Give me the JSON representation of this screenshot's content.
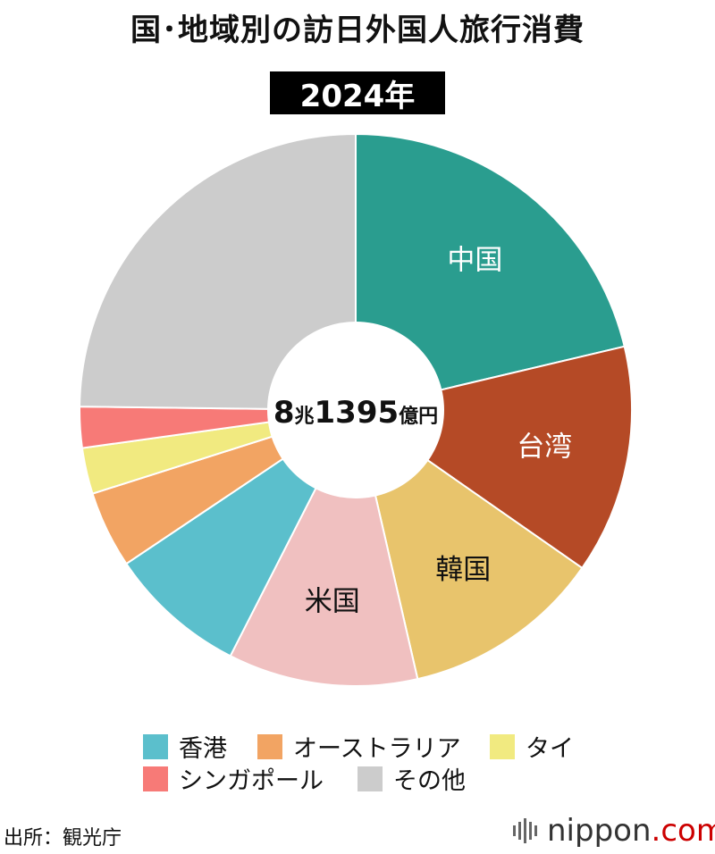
{
  "title": "国･地域別の訪日外国人旅行消費",
  "year_label": "2024年",
  "center_total": {
    "number_1": "8",
    "unit_1": "兆",
    "number_2": "1395",
    "unit_2": "億円"
  },
  "source": "出所：観光庁",
  "brand": {
    "name": "nippon",
    "suffix": ".com"
  },
  "chart_data": {
    "type": "pie",
    "values_unit": "percent (estimated from slice angles)",
    "slices": [
      {
        "label": "中国",
        "value": 21.3,
        "color": "#2a9d8f",
        "labeled": true,
        "label_color": "#ffffff"
      },
      {
        "label": "台湾",
        "value": 13.4,
        "color": "#b54a26",
        "labeled": true,
        "label_color": "#ffffff"
      },
      {
        "label": "韓国",
        "value": 11.7,
        "color": "#e8c46c",
        "labeled": true,
        "label_color": "#111111"
      },
      {
        "label": "米国",
        "value": 11.1,
        "color": "#f0c0c0",
        "labeled": true,
        "label_color": "#111111"
      },
      {
        "label": "香港",
        "value": 8.1,
        "color": "#5bbfcc",
        "labeled": false
      },
      {
        "label": "オーストラリア",
        "value": 4.5,
        "color": "#f2a463",
        "labeled": false
      },
      {
        "label": "タイ",
        "value": 2.7,
        "color": "#f1ea80",
        "labeled": false
      },
      {
        "label": "シンガポール",
        "value": 2.4,
        "color": "#f77a77",
        "labeled": false
      },
      {
        "label": "その他",
        "value": 24.8,
        "color": "#cccccc",
        "labeled": false
      }
    ],
    "legend": [
      {
        "label": "香港",
        "color": "#5bbfcc"
      },
      {
        "label": "オーストラリア",
        "color": "#f2a463"
      },
      {
        "label": "タイ",
        "color": "#f1ea80"
      },
      {
        "label": "シンガポール",
        "color": "#f77a77"
      },
      {
        "label": "その他",
        "color": "#cccccc"
      }
    ],
    "legend_placement": "bottom"
  }
}
